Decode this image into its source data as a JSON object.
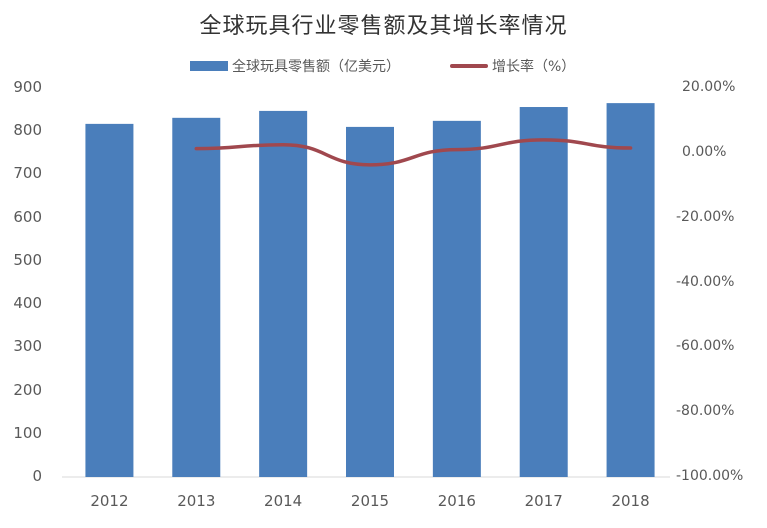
{
  "title": "全球玩具行业零售额及其增长率情况",
  "legend": {
    "bar_label": "全球玩具零售额（亿美元）",
    "line_label": "增长率（%）"
  },
  "colors": {
    "bar": "#4a7ebb",
    "line": "#a0484e",
    "axis_text": "#595959",
    "baseline": "#d9d9d9"
  },
  "left_axis_ticks": [
    "900",
    "800",
    "700",
    "600",
    "500",
    "400",
    "300",
    "200",
    "100",
    "0"
  ],
  "right_axis_ticks": [
    "20.00%",
    "0.00%",
    "-20.00%",
    "-40.00%",
    "-60.00%",
    "-80.00%",
    "-100.00%"
  ],
  "x_ticks": [
    "2012",
    "2013",
    "2014",
    "2015",
    "2016",
    "2017",
    "2018"
  ],
  "chart_data": {
    "type": "bar",
    "title": "全球玩具行业零售额及其增长率情况",
    "categories": [
      "2012",
      "2013",
      "2014",
      "2015",
      "2016",
      "2017",
      "2018"
    ],
    "series": [
      {
        "name": "全球玩具零售额（亿美元）",
        "type": "bar",
        "axis": "left",
        "values": [
          817,
          831,
          847,
          810,
          824,
          856,
          865
        ]
      },
      {
        "name": "增长率（%）",
        "type": "line",
        "axis": "right",
        "values": [
          null,
          1.3,
          2.5,
          -3.7,
          1.0,
          4.0,
          1.5
        ]
      }
    ],
    "xlabel": "",
    "ylabel": "",
    "ylim": [
      0,
      900
    ],
    "y2lim": [
      -100,
      20
    ],
    "grid": false,
    "legend_position": "top"
  }
}
